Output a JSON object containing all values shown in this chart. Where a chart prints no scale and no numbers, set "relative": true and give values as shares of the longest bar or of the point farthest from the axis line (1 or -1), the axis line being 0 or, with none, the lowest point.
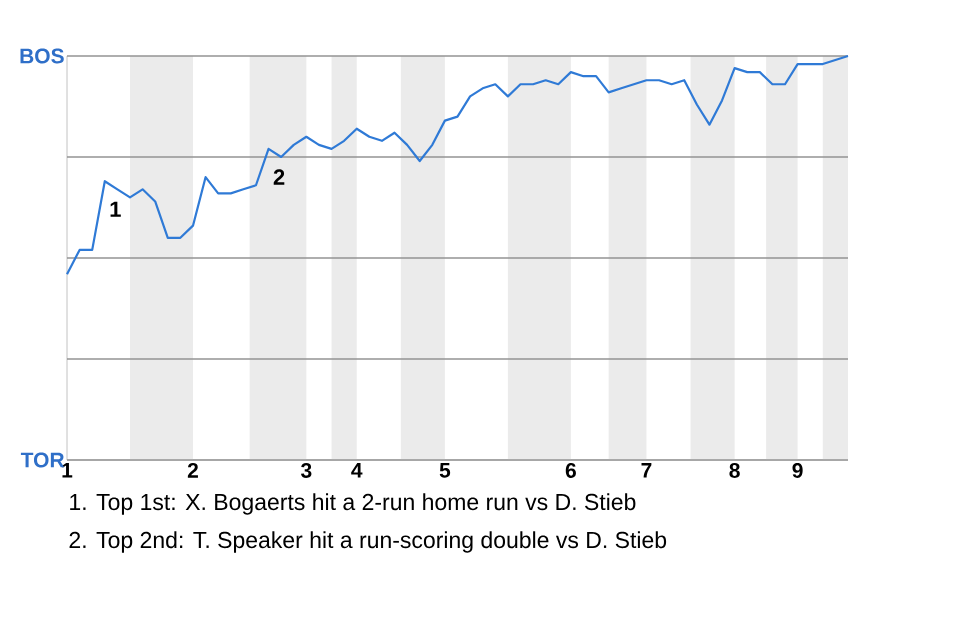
{
  "chart_data": {
    "type": "line",
    "relative": true,
    "categories": [
      "1",
      null,
      null,
      null,
      null,
      null,
      null,
      null,
      null,
      null,
      "2",
      null,
      null,
      null,
      null,
      null,
      null,
      null,
      null,
      "3",
      null,
      null,
      null,
      "4",
      null,
      null,
      null,
      null,
      null,
      null,
      "5",
      null,
      null,
      null,
      null,
      null,
      null,
      null,
      null,
      null,
      "6",
      null,
      null,
      null,
      null,
      null,
      "7",
      null,
      null,
      null,
      null,
      null,
      null,
      "8",
      null,
      null,
      null,
      null,
      "9",
      null,
      null,
      null,
      null
    ],
    "series": [
      {
        "color": "#2f7ad6",
        "values": [
          0.46,
          0.52,
          0.52,
          0.69,
          0.67,
          0.65,
          0.67,
          0.64,
          0.55,
          0.55,
          0.58,
          0.7,
          0.66,
          0.66,
          0.67,
          0.68,
          0.77,
          0.75,
          0.78,
          0.8,
          0.78,
          0.77,
          0.79,
          0.82,
          0.8,
          0.79,
          0.81,
          0.78,
          0.74,
          0.78,
          0.84,
          0.85,
          0.9,
          0.92,
          0.93,
          0.9,
          0.93,
          0.93,
          0.94,
          0.93,
          0.96,
          0.95,
          0.95,
          0.91,
          0.92,
          0.93,
          0.94,
          0.94,
          0.93,
          0.94,
          0.88,
          0.83,
          0.89,
          0.97,
          0.96,
          0.96,
          0.93,
          0.93,
          0.98,
          0.98,
          0.98,
          0.99,
          1.0
        ]
      }
    ],
    "grid": "y",
    "annotations": [
      "BOS",
      "TOR",
      {
        "text": "1",
        "y": 0.69
      },
      {
        "text": "2",
        "y": 0.77
      },
      "1. Top 1st: X. Bogaerts hit a 2-run home run vs D. Stieb",
      "2. Top 2nd: T. Speaker hit a run-scoring double vs D. Stieb"
    ]
  }
}
